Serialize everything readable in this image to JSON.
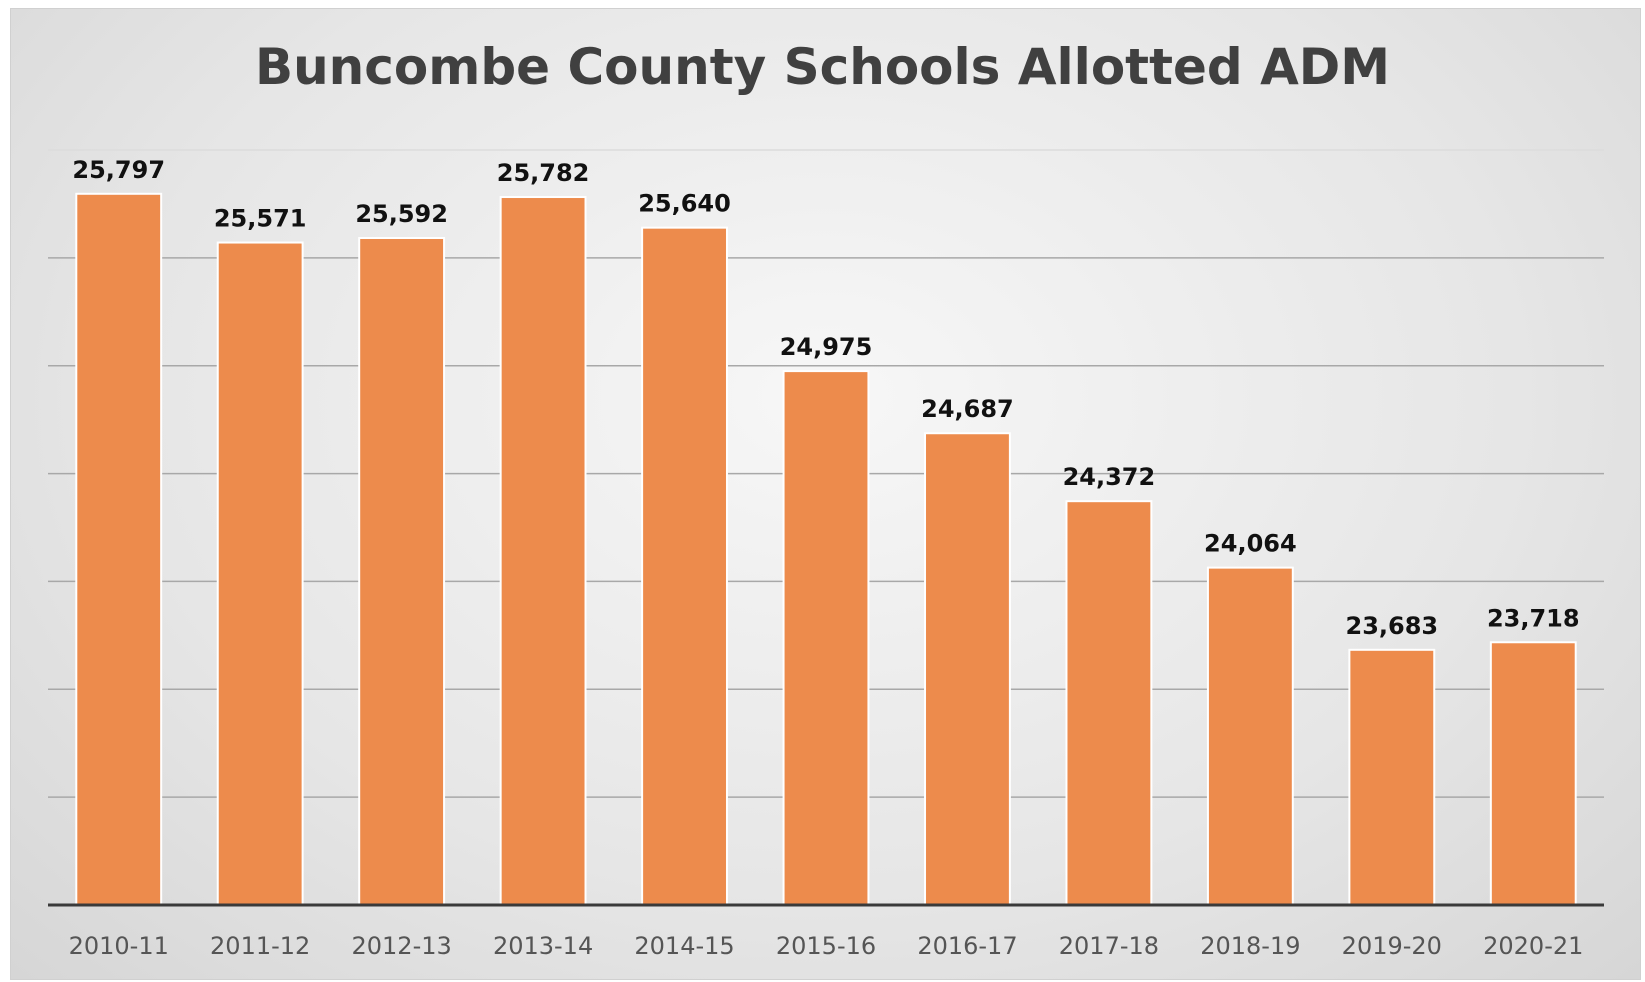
{
  "chart_data": {
    "type": "bar",
    "title": "Buncombe County Schools Allotted ADM",
    "xlabel": "",
    "ylabel": "",
    "categories": [
      "2010-11",
      "2011-12",
      "2012-13",
      "2013-14",
      "2014-15",
      "2015-16",
      "2016-17",
      "2017-18",
      "2018-19",
      "2019-20",
      "2020-21"
    ],
    "values": [
      25797,
      25571,
      25592,
      25782,
      25640,
      24975,
      24687,
      24372,
      24064,
      23683,
      23718
    ],
    "data_labels": [
      "25,797",
      "25,571",
      "25,592",
      "25,782",
      "25,640",
      "24,975",
      "24,687",
      "24,372",
      "24,064",
      "23,683",
      "23,718"
    ],
    "ylim": [
      22500,
      26000
    ],
    "grid": true,
    "legend": "none",
    "bar_color": "#ed8b4c"
  }
}
